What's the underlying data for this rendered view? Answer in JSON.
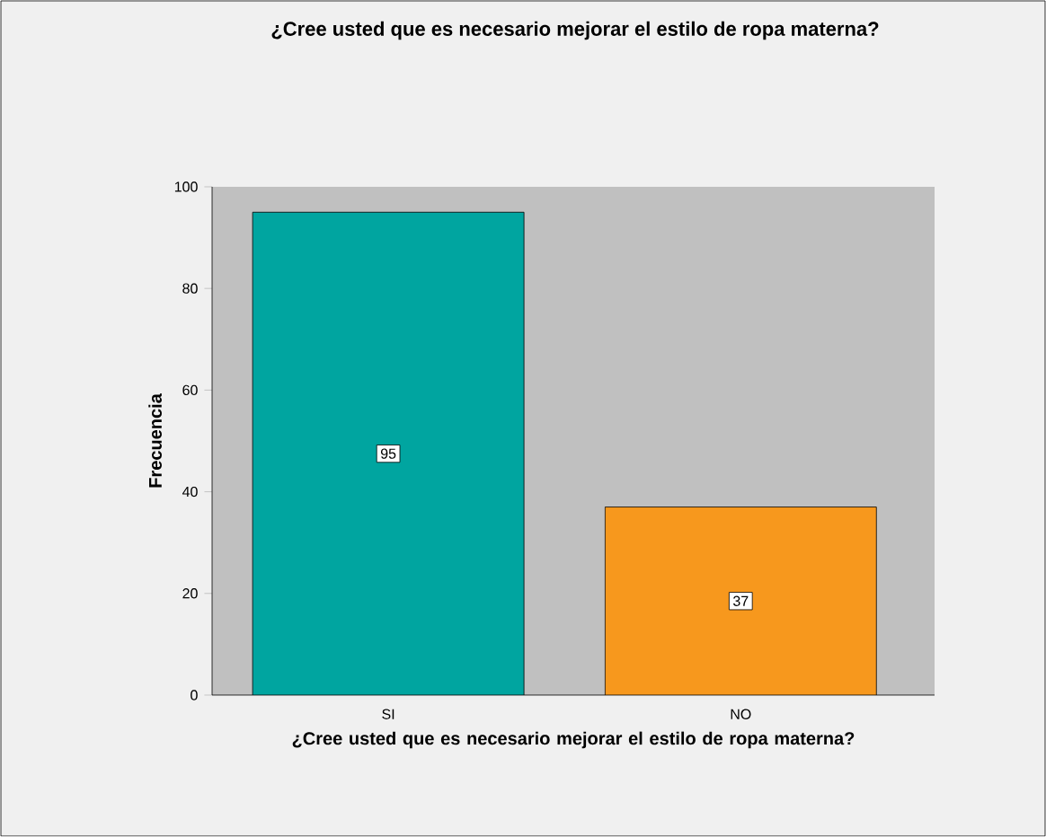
{
  "chart_data": {
    "type": "bar",
    "title": "¿Cree usted que es necesario mejorar el estilo de ropa materna?",
    "xlabel": "¿Cree usted que es necesario mejorar el estilo de ropa materna?",
    "ylabel": "Frecuencia",
    "categories": [
      "SI",
      "NO"
    ],
    "values": [
      95,
      37
    ],
    "colors": [
      "#00a5a0",
      "#f7981d"
    ],
    "ylim": [
      0,
      100
    ],
    "yticks": [
      0,
      20,
      40,
      60,
      80,
      100
    ],
    "data_labels": true
  }
}
